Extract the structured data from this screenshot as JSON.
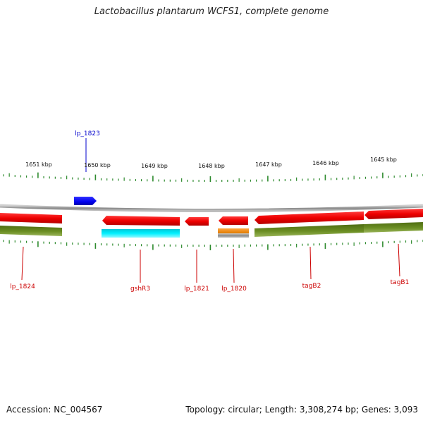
{
  "title": "Lactobacillus plantarum WCFS1, complete genome",
  "footer": {
    "accession": "Accession: NC_004567",
    "topology": "Topology: circular; Length: 3,308,274 bp; Genes: 3,093"
  },
  "ruler": {
    "labels": [
      "1651 kbp",
      "1650 kbp",
      "1649 kbp",
      "1648 kbp",
      "1647 kbp",
      "1646 kbp",
      "1645 kbp"
    ]
  },
  "genes": [
    {
      "name": "lp_1823",
      "strand": "top",
      "color": "#0000ff"
    },
    {
      "name": "lp_1824",
      "strand": "bottom",
      "color": "#cc0000"
    },
    {
      "name": "gshR3",
      "strand": "bottom",
      "color": "#cc0000"
    },
    {
      "name": "lp_1821",
      "strand": "bottom",
      "color": "#cc0000"
    },
    {
      "name": "lp_1820",
      "strand": "bottom",
      "color": "#cc0000"
    },
    {
      "name": "tagB2",
      "strand": "bottom",
      "color": "#cc0000"
    },
    {
      "name": "tagB1",
      "strand": "bottom",
      "color": "#cc0000"
    }
  ],
  "colors": {
    "forward_gene": "#0000ee",
    "cds": "#ee0000",
    "cog_green": "#6b8e23",
    "cog_cyan": "#00e5ee",
    "cog_orange": "#ff8c00",
    "backbone": "#999999",
    "tick": "#2e8b2e"
  }
}
